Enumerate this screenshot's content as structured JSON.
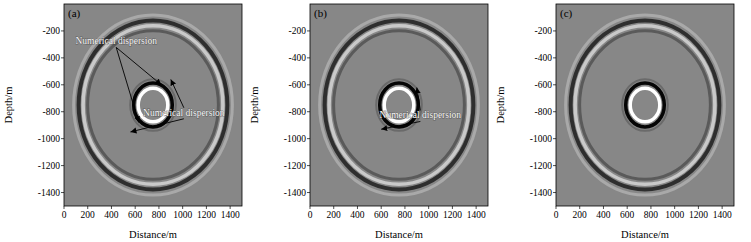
{
  "chart_data": [
    {
      "type": "image",
      "label": "(a)",
      "xlabel": "Distance/m",
      "ylabel": "Depth/m",
      "xlim": [
        0,
        1500
      ],
      "ylim": [
        -1500,
        0
      ],
      "xticks": [
        0,
        200,
        400,
        600,
        800,
        1000,
        1200,
        1400
      ],
      "yticks": [
        -200,
        -400,
        -600,
        -800,
        -1000,
        -1200,
        -1400
      ],
      "center": [
        750,
        -750
      ],
      "wavefronts": [
        {
          "radius": 610
        },
        {
          "radius": 150
        }
      ],
      "annotations": [
        {
          "text": "Numerical dispersion",
          "x": 440,
          "y": -300,
          "arrows": [
            [
              820,
              -600
            ],
            [
              630,
              -880
            ]
          ]
        },
        {
          "text": "Numerical dispersion",
          "x": 1010,
          "y": -830,
          "arrows": [
            [
              900,
              -560
            ],
            [
              560,
              -950
            ]
          ]
        }
      ]
    },
    {
      "type": "image",
      "label": "(b)",
      "xlabel": "Distance/m",
      "ylabel": "Depth/m",
      "xlim": [
        0,
        1500
      ],
      "ylim": [
        -1500,
        0
      ],
      "xticks": [
        0,
        200,
        400,
        600,
        800,
        1000,
        1200,
        1400
      ],
      "yticks": [
        -200,
        -400,
        -600,
        -800,
        -1000,
        -1200,
        -1400
      ],
      "center": [
        750,
        -750
      ],
      "wavefronts": [
        {
          "radius": 610
        },
        {
          "radius": 150
        }
      ],
      "annotations": [
        {
          "text": "Numerical dispersion",
          "x": 930,
          "y": -850,
          "arrows": [
            [
              900,
              -620
            ],
            [
              600,
              -930
            ]
          ]
        }
      ]
    },
    {
      "type": "image",
      "label": "(c)",
      "xlabel": "Distance/m",
      "ylabel": "Depth/m",
      "xlim": [
        0,
        1500
      ],
      "ylim": [
        -1500,
        0
      ],
      "xticks": [
        0,
        200,
        400,
        600,
        800,
        1000,
        1200,
        1400
      ],
      "yticks": [
        -200,
        -400,
        -600,
        -800,
        -1000,
        -1200,
        -1400
      ],
      "center": [
        750,
        -750
      ],
      "wavefronts": [
        {
          "radius": 610
        },
        {
          "radius": 150
        }
      ],
      "annotations": []
    }
  ]
}
